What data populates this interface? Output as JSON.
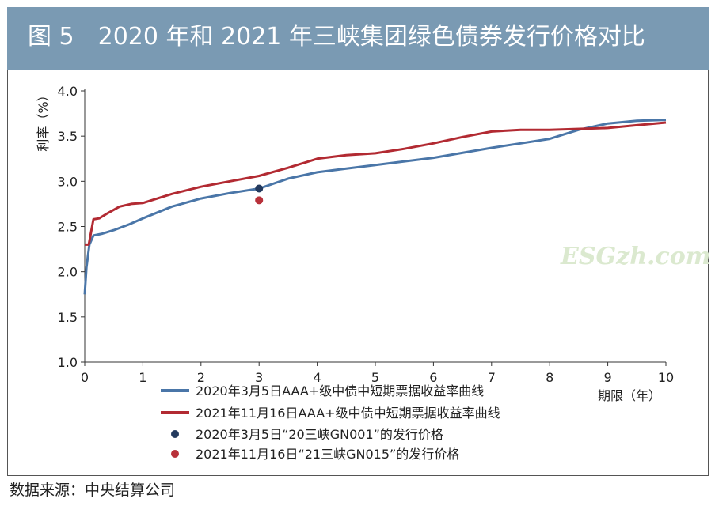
{
  "header": {
    "title": "图 5　2020 年和 2021 年三峡集团绿色债券发行价格对比"
  },
  "source": "数据来源：中央结算公司",
  "watermark": "ESGzh.com",
  "colors": {
    "header_bg": "#7a9ab3",
    "series_2020": "#4a76a8",
    "series_2021": "#b22a32",
    "point_2020": "#233a5e",
    "point_2021": "#b8313a"
  },
  "chart_data": {
    "type": "line",
    "title": "",
    "xlabel": "期限（年）",
    "ylabel": "利率（%）",
    "xlim": [
      0,
      10
    ],
    "ylim": [
      1.0,
      4.0
    ],
    "x_ticks": [
      "0",
      "1",
      "2",
      "3",
      "4",
      "5",
      "6",
      "7",
      "8",
      "9",
      "10"
    ],
    "y_ticks": [
      "1.0",
      "1.5",
      "2.0",
      "2.5",
      "3.0",
      "3.5",
      "4.0"
    ],
    "grid": false,
    "legend_position": "bottom",
    "series": [
      {
        "name": "2020年3月5日AAA+级中债中短期票据收益率曲线",
        "points": [
          [
            0.0,
            1.75
          ],
          [
            0.03,
            2.05
          ],
          [
            0.08,
            2.3
          ],
          [
            0.15,
            2.4
          ],
          [
            0.3,
            2.42
          ],
          [
            0.5,
            2.46
          ],
          [
            0.75,
            2.52
          ],
          [
            1.0,
            2.59
          ],
          [
            1.5,
            2.72
          ],
          [
            2.0,
            2.81
          ],
          [
            2.5,
            2.87
          ],
          [
            3.0,
            2.92
          ],
          [
            3.5,
            3.03
          ],
          [
            4.0,
            3.1
          ],
          [
            4.5,
            3.14
          ],
          [
            5.0,
            3.18
          ],
          [
            6.0,
            3.26
          ],
          [
            7.0,
            3.37
          ],
          [
            7.5,
            3.42
          ],
          [
            8.0,
            3.47
          ],
          [
            8.5,
            3.57
          ],
          [
            9.0,
            3.64
          ],
          [
            9.5,
            3.67
          ],
          [
            10.0,
            3.68
          ]
        ]
      },
      {
        "name": "2021年11月16日AAA+级中债中短期票据收益率曲线",
        "points": [
          [
            0.0,
            2.3
          ],
          [
            0.07,
            2.3
          ],
          [
            0.15,
            2.58
          ],
          [
            0.25,
            2.59
          ],
          [
            0.4,
            2.65
          ],
          [
            0.6,
            2.72
          ],
          [
            0.8,
            2.75
          ],
          [
            1.0,
            2.76
          ],
          [
            1.5,
            2.86
          ],
          [
            2.0,
            2.94
          ],
          [
            2.5,
            3.0
          ],
          [
            3.0,
            3.06
          ],
          [
            3.5,
            3.15
          ],
          [
            4.0,
            3.25
          ],
          [
            4.5,
            3.29
          ],
          [
            5.0,
            3.31
          ],
          [
            5.5,
            3.36
          ],
          [
            6.0,
            3.42
          ],
          [
            6.5,
            3.49
          ],
          [
            7.0,
            3.55
          ],
          [
            7.5,
            3.57
          ],
          [
            8.0,
            3.57
          ],
          [
            9.0,
            3.59
          ],
          [
            9.5,
            3.62
          ],
          [
            10.0,
            3.65
          ]
        ]
      }
    ],
    "points": [
      {
        "name": "2020年3月5日“20三峡GN001”的发行价格",
        "x": 3.0,
        "y": 2.92
      },
      {
        "name": "2021年11月16日“21三峡GN015”的发行价格",
        "x": 3.0,
        "y": 2.79
      }
    ]
  }
}
